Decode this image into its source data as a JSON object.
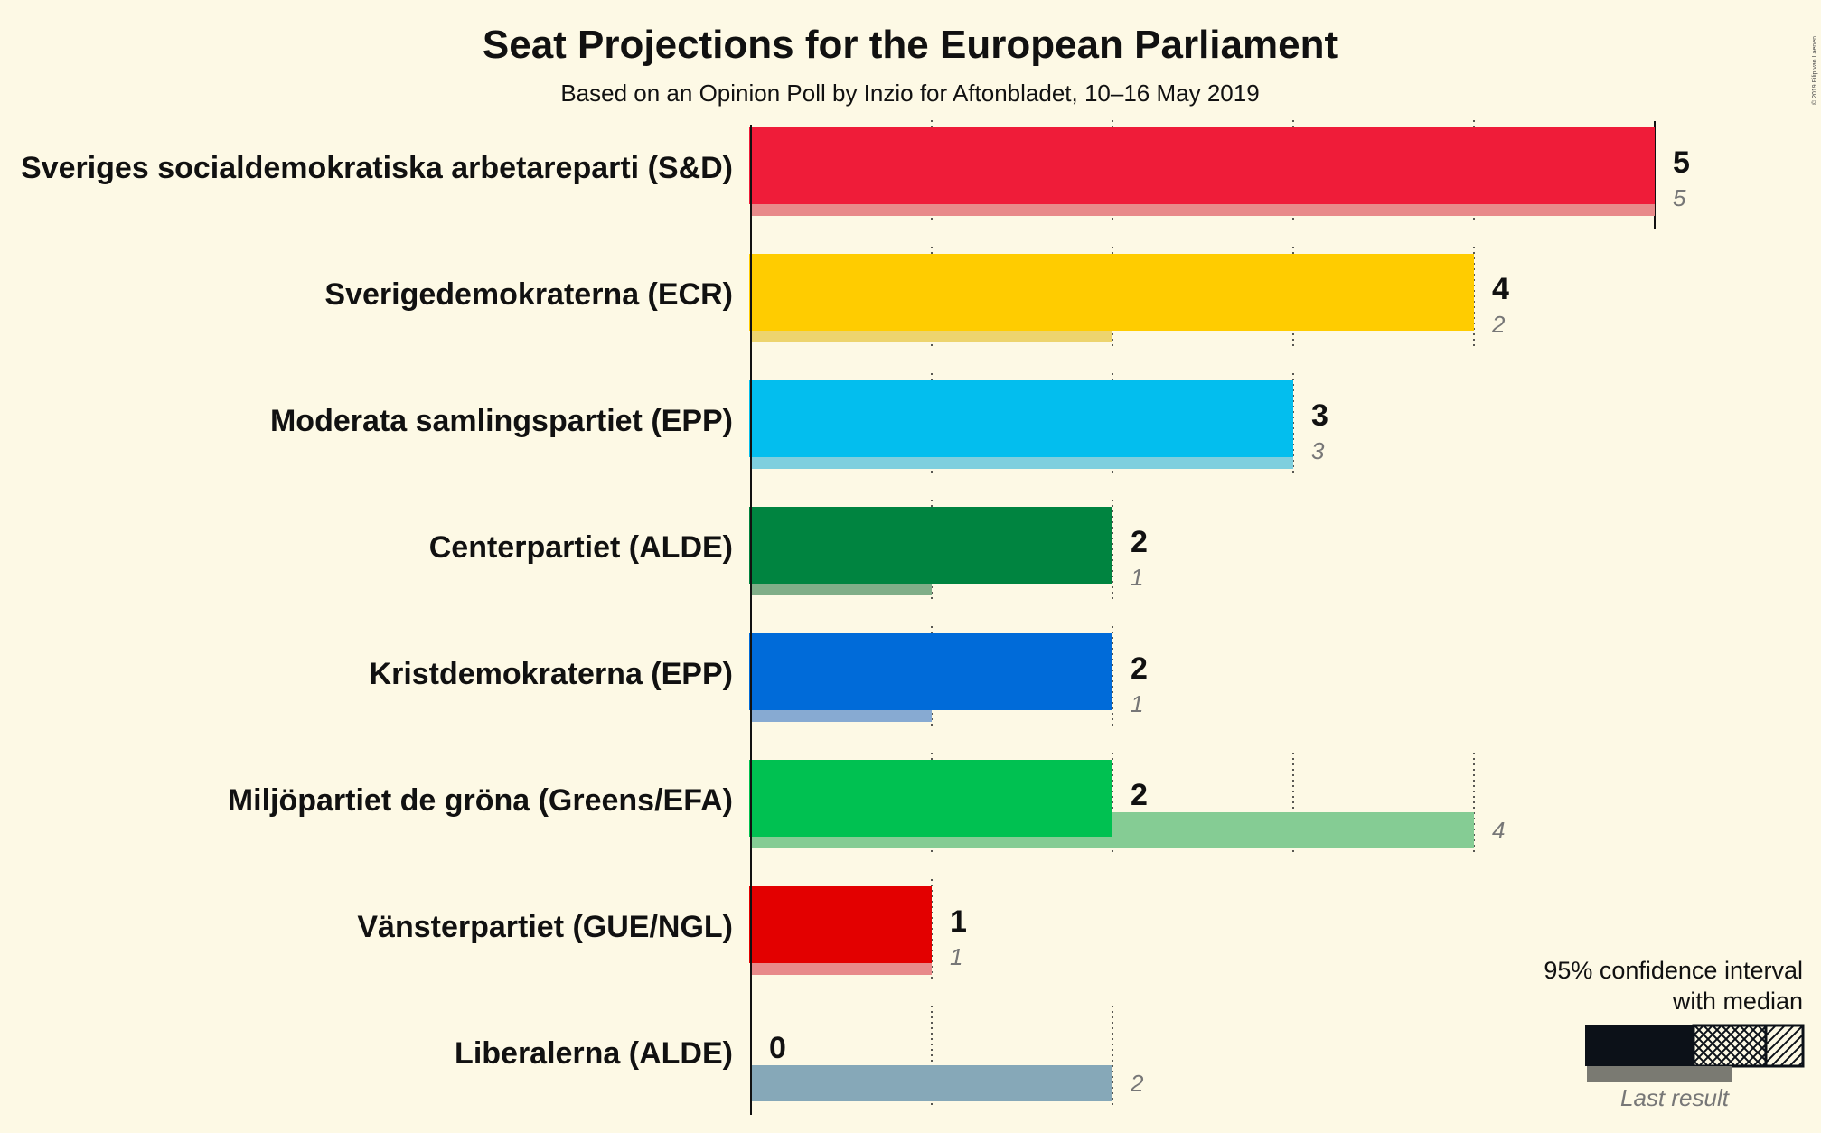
{
  "chart_data": {
    "type": "bar",
    "orientation": "horizontal",
    "title": "Seat Projections for the European Parliament",
    "subtitle": "Based on an Opinion Poll by Inzio for Aftonbladet, 10–16 May 2019",
    "copyright": "© 2019 Filip van Laenen",
    "xlim": [
      0,
      5
    ],
    "gridlines": [
      1,
      2,
      3,
      4
    ],
    "categories": [
      "Sveriges socialdemokratiska arbetareparti (S&D)",
      "Sverigedemokraterna (ECR)",
      "Moderata samlingspartiet (EPP)",
      "Centerpartiet (ALDE)",
      "Kristdemokraterna (EPP)",
      "Miljöpartiet de gröna (Greens/EFA)",
      "Vänsterpartiet (GUE/NGL)",
      "Liberalerna (ALDE)"
    ],
    "series": [
      {
        "values": [
          5,
          4,
          3,
          2,
          2,
          2,
          1,
          0
        ],
        "value_labels": [
          "5",
          "4",
          "3",
          "2",
          "2",
          "2",
          "1",
          "0"
        ],
        "colors": [
          "#EF1C39",
          "#FFCC00",
          "#03BEEE",
          "#008440",
          "#006BD9",
          "#00C151",
          "#E30000",
          "#6AB2E7"
        ]
      },
      {
        "values": [
          5,
          2,
          3,
          1,
          1,
          4,
          1,
          2
        ],
        "value_labels": [
          "5",
          "2",
          "3",
          "1",
          "1",
          "4",
          "1",
          "2"
        ],
        "colors": [
          "#E88A8A",
          "#EDD46E",
          "#7FCFDE",
          "#80AE88",
          "#87AAD2",
          "#85CC94",
          "#E88A8A",
          "#86A8B8"
        ]
      }
    ],
    "legend": {
      "title_lines": [
        "95% confidence interval",
        "with median"
      ],
      "last_result_label": "Last result",
      "position": "bottom-right"
    }
  }
}
